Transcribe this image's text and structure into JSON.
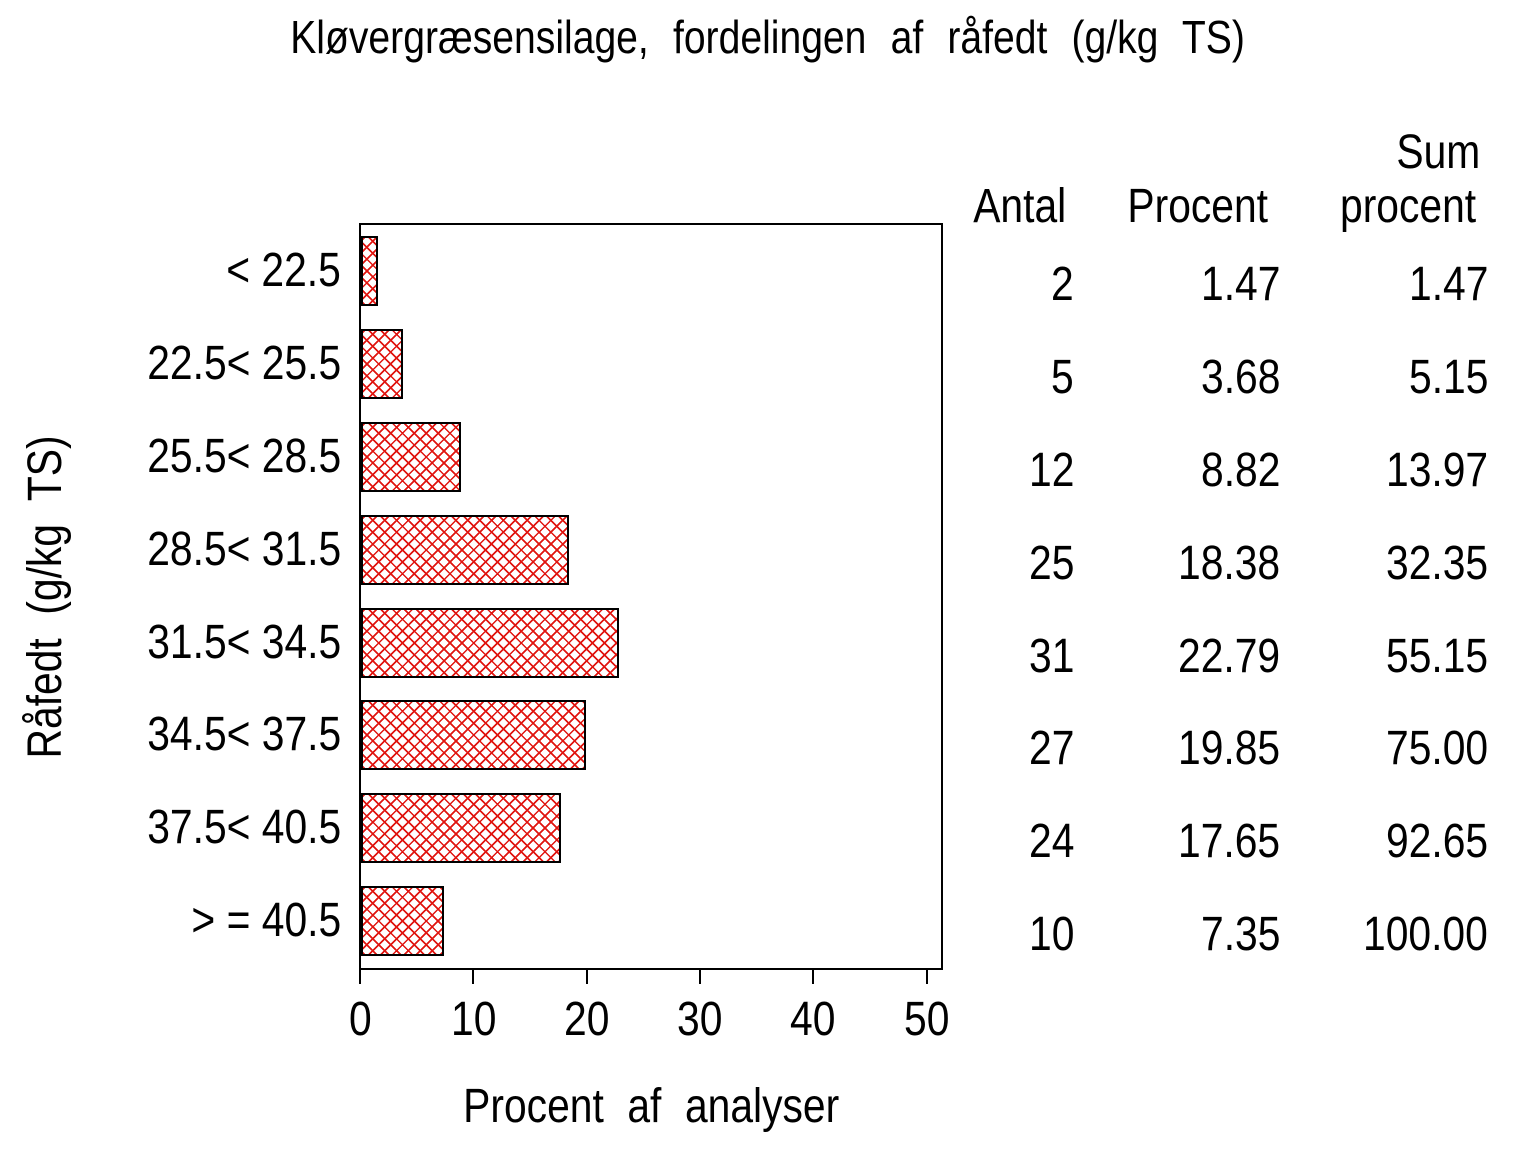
{
  "title": "Kløvergræsensilage, fordelingen af råfedt (g/kg TS)",
  "y_axis": {
    "label": "Råfedt (g/kg TS)"
  },
  "x_axis": {
    "label": "Procent af analyser",
    "ticks": [
      "0",
      "10",
      "20",
      "30",
      "40",
      "50"
    ]
  },
  "table": {
    "col1_header": "Antal",
    "col2_header": "Procent",
    "col3_header_line1": "Sum",
    "col3_header_line2": "procent"
  },
  "rows": [
    {
      "category": "< 22.5",
      "antal": "2",
      "procent": "1.47",
      "sum_procent": "1.47"
    },
    {
      "category": "22.5< 25.5",
      "antal": "5",
      "procent": "3.68",
      "sum_procent": "5.15"
    },
    {
      "category": "25.5< 28.5",
      "antal": "12",
      "procent": "8.82",
      "sum_procent": "13.97"
    },
    {
      "category": "28.5< 31.5",
      "antal": "25",
      "procent": "18.38",
      "sum_procent": "32.35"
    },
    {
      "category": "31.5< 34.5",
      "antal": "31",
      "procent": "22.79",
      "sum_procent": "55.15"
    },
    {
      "category": "34.5< 37.5",
      "antal": "27",
      "procent": "19.85",
      "sum_procent": "75.00"
    },
    {
      "category": "37.5< 40.5",
      "antal": "24",
      "procent": "17.65",
      "sum_procent": "92.65"
    },
    {
      "category": "> = 40.5",
      "antal": "10",
      "procent": "7.35",
      "sum_procent": "100.00"
    }
  ],
  "chart_data": {
    "type": "bar",
    "orientation": "horizontal",
    "title": "Kløvergræsensilage, fordelingen af råfedt (g/kg TS)",
    "xlabel": "Procent af analyser",
    "ylabel": "Råfedt (g/kg TS)",
    "xlim": [
      0,
      50
    ],
    "x_ticks": [
      0,
      10,
      20,
      30,
      40,
      50
    ],
    "grid": false,
    "legend": "none",
    "categories": [
      "< 22.5",
      "22.5< 25.5",
      "25.5< 28.5",
      "28.5< 31.5",
      "31.5< 34.5",
      "34.5< 37.5",
      "37.5< 40.5",
      "> = 40.5"
    ],
    "series": [
      {
        "name": "Procent af analyser",
        "values": [
          1.47,
          3.68,
          8.82,
          18.38,
          22.79,
          19.85,
          17.65,
          7.35
        ]
      },
      {
        "name": "Antal",
        "values": [
          2,
          5,
          12,
          25,
          31,
          27,
          24,
          10
        ]
      },
      {
        "name": "Sum procent",
        "values": [
          1.47,
          5.15,
          13.97,
          32.35,
          55.15,
          75.0,
          92.65,
          100.0
        ]
      }
    ],
    "bar_style": {
      "fill_pattern": "red-crosshatch",
      "pattern_color": "#e01510",
      "border_color": "#000000",
      "background_color": "#ffffff"
    }
  }
}
